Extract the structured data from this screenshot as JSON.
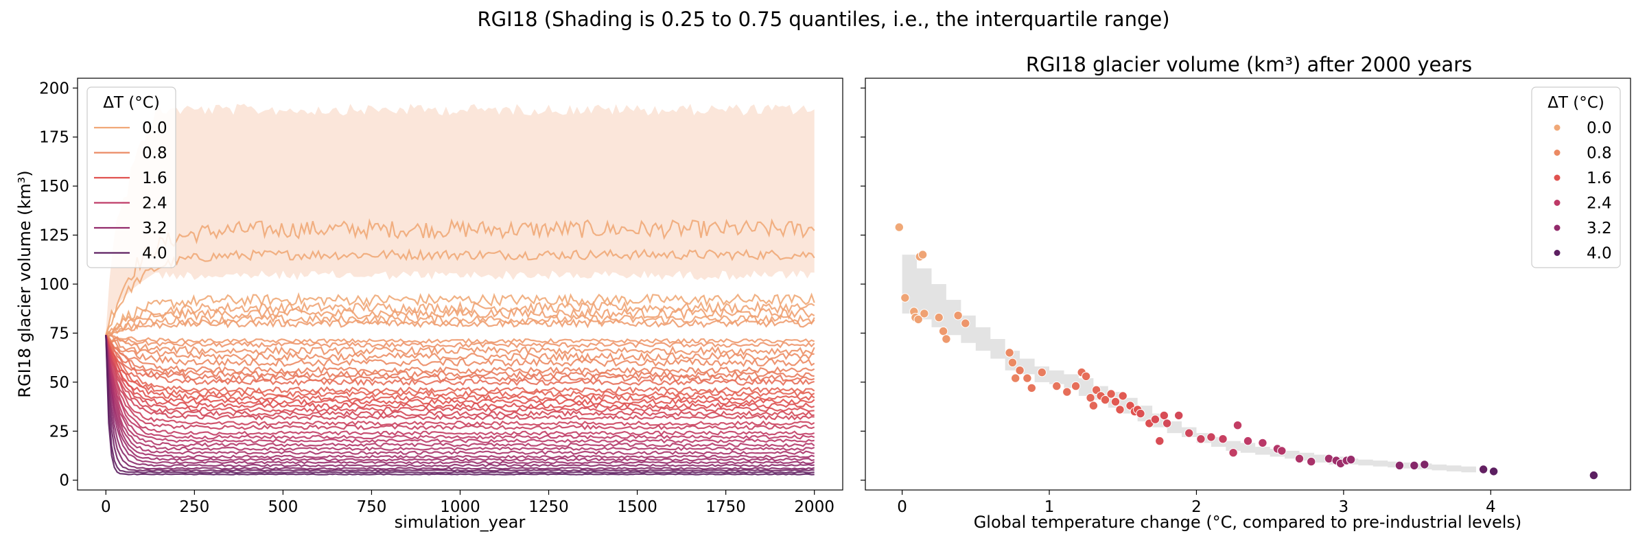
{
  "suptitle": "RGI18 (Shading is 0.25 to 0.75 quantiles, i.e., the interquartile range)",
  "legend_title": "ΔT (°C)",
  "legend_entries": [
    "0.0",
    "0.8",
    "1.6",
    "2.4",
    "3.2",
    "4.0"
  ],
  "colors": {
    "0.0": "#f0a877",
    "0.8": "#eb8a63",
    "1.6": "#e0524f",
    "2.4": "#be3a67",
    "3.2": "#922a6b",
    "4.0": "#5c1f61"
  },
  "chart_data": [
    {
      "type": "line",
      "title": "",
      "xlabel": "simulation_year",
      "ylabel": "RGI18 glacier volume (km³)",
      "xlim": [
        -80,
        2080
      ],
      "ylim": [
        -5,
        205
      ],
      "xticks": [
        "0",
        "250",
        "500",
        "750",
        "1000",
        "1250",
        "1500",
        "1750",
        "2000"
      ],
      "yticks": [
        "0",
        "25",
        "50",
        "75",
        "100",
        "125",
        "150",
        "175",
        "200"
      ],
      "initial_volume": 74,
      "shading": {
        "lower": 107,
        "upper": 192,
        "color": "#fbe6da"
      },
      "series": [
        {
          "dT": 0.0,
          "steady": 128,
          "noise": 4.5
        },
        {
          "dT": 0.0,
          "steady": 115,
          "noise": 2.5
        },
        {
          "dT": 0.0,
          "steady": 92,
          "noise": 2.8
        },
        {
          "dT": 0.1,
          "steady": 88,
          "noise": 2.5
        },
        {
          "dT": 0.2,
          "steady": 85,
          "noise": 2.5
        },
        {
          "dT": 0.2,
          "steady": 82,
          "noise": 2.2
        },
        {
          "dT": 0.3,
          "steady": 80,
          "noise": 1.8
        },
        {
          "dT": 0.4,
          "steady": 71,
          "noise": 1.0
        },
        {
          "dT": 0.5,
          "steady": 69,
          "noise": 1.2
        },
        {
          "dT": 0.6,
          "steady": 66,
          "noise": 1.8
        },
        {
          "dT": 0.7,
          "steady": 63,
          "noise": 1.8
        },
        {
          "dT": 0.8,
          "steady": 60,
          "noise": 1.8
        },
        {
          "dT": 0.9,
          "steady": 56,
          "noise": 1.5
        },
        {
          "dT": 1.0,
          "steady": 54,
          "noise": 1.5
        },
        {
          "dT": 1.1,
          "steady": 52,
          "noise": 1.5
        },
        {
          "dT": 1.2,
          "steady": 50,
          "noise": 1.4
        },
        {
          "dT": 1.3,
          "steady": 46,
          "noise": 1.4
        },
        {
          "dT": 1.4,
          "steady": 44,
          "noise": 1.3
        },
        {
          "dT": 1.5,
          "steady": 42,
          "noise": 1.3
        },
        {
          "dT": 1.6,
          "steady": 40,
          "noise": 1.2
        },
        {
          "dT": 1.7,
          "steady": 38,
          "noise": 1.2
        },
        {
          "dT": 1.8,
          "steady": 36,
          "noise": 1.1
        },
        {
          "dT": 1.9,
          "steady": 34,
          "noise": 1.1
        },
        {
          "dT": 2.0,
          "steady": 32,
          "noise": 1.0
        },
        {
          "dT": 2.1,
          "steady": 29,
          "noise": 1.0
        },
        {
          "dT": 2.2,
          "steady": 27,
          "noise": 1.0
        },
        {
          "dT": 2.3,
          "steady": 24,
          "noise": 0.9
        },
        {
          "dT": 2.4,
          "steady": 22,
          "noise": 0.9
        },
        {
          "dT": 2.5,
          "steady": 20,
          "noise": 0.8
        },
        {
          "dT": 2.6,
          "steady": 18,
          "noise": 0.8
        },
        {
          "dT": 2.7,
          "steady": 16,
          "noise": 0.7
        },
        {
          "dT": 2.8,
          "steady": 14,
          "noise": 0.7
        },
        {
          "dT": 2.9,
          "steady": 12,
          "noise": 0.6
        },
        {
          "dT": 3.0,
          "steady": 10.5,
          "noise": 0.6
        },
        {
          "dT": 3.1,
          "steady": 9,
          "noise": 0.5
        },
        {
          "dT": 3.3,
          "steady": 7.5,
          "noise": 0.5
        },
        {
          "dT": 3.5,
          "steady": 6,
          "noise": 0.4
        },
        {
          "dT": 3.7,
          "steady": 5,
          "noise": 0.3
        },
        {
          "dT": 3.9,
          "steady": 4,
          "noise": 0.3
        },
        {
          "dT": 4.0,
          "steady": 3,
          "noise": 0.2
        }
      ]
    },
    {
      "type": "scatter",
      "title": "RGI18 glacier volume (km³) after 2000 years",
      "xlabel": "Global temperature change (°C, compared to pre-industrial levels)",
      "ylabel": "",
      "xlim": [
        -0.25,
        4.95
      ],
      "ylim": [
        -5,
        205
      ],
      "xticks": [
        "0",
        "1",
        "2",
        "3",
        "4"
      ],
      "band": [
        [
          0.05,
          85,
          115
        ],
        [
          0.15,
          82,
          108
        ],
        [
          0.25,
          78,
          100
        ],
        [
          0.35,
          74,
          92
        ],
        [
          0.45,
          70,
          84
        ],
        [
          0.55,
          66,
          78
        ],
        [
          0.65,
          62,
          72
        ],
        [
          0.75,
          56,
          66
        ],
        [
          0.85,
          54,
          62
        ],
        [
          0.95,
          50,
          58
        ],
        [
          1.05,
          49,
          56
        ],
        [
          1.15,
          47,
          54
        ],
        [
          1.25,
          43,
          52
        ],
        [
          1.35,
          41,
          48
        ],
        [
          1.45,
          37,
          45
        ],
        [
          1.55,
          34,
          42
        ],
        [
          1.65,
          30,
          38
        ],
        [
          1.75,
          27,
          34
        ],
        [
          1.85,
          24,
          30
        ],
        [
          1.95,
          22,
          27
        ],
        [
          2.05,
          19,
          24
        ],
        [
          2.15,
          17,
          22
        ],
        [
          2.25,
          15,
          20
        ],
        [
          2.35,
          14,
          19
        ],
        [
          2.45,
          13,
          17
        ],
        [
          2.55,
          12,
          16
        ],
        [
          2.65,
          11,
          15
        ],
        [
          2.75,
          10,
          14
        ],
        [
          2.85,
          9,
          13
        ],
        [
          2.95,
          8,
          12
        ],
        [
          3.05,
          8,
          11
        ],
        [
          3.15,
          7.5,
          10.5
        ],
        [
          3.25,
          7,
          10
        ],
        [
          3.35,
          6.5,
          9.5
        ],
        [
          3.45,
          6,
          9
        ],
        [
          3.55,
          5.5,
          8.5
        ],
        [
          3.65,
          5,
          8
        ],
        [
          3.75,
          4.5,
          7.5
        ],
        [
          3.85,
          4,
          7
        ]
      ],
      "points": [
        [
          -0.02,
          129,
          0.0
        ],
        [
          0.02,
          93,
          0.1
        ],
        [
          0.08,
          86,
          0.1
        ],
        [
          0.09,
          83,
          0.1
        ],
        [
          0.11,
          82,
          0.2
        ],
        [
          0.12,
          114,
          0.1
        ],
        [
          0.14,
          115,
          0.1
        ],
        [
          0.15,
          85,
          0.2
        ],
        [
          0.25,
          83,
          0.3
        ],
        [
          0.28,
          76,
          0.4
        ],
        [
          0.3,
          72,
          0.4
        ],
        [
          0.38,
          84,
          0.4
        ],
        [
          0.43,
          80,
          0.5
        ],
        [
          0.73,
          65,
          0.8
        ],
        [
          0.75,
          60,
          0.8
        ],
        [
          0.77,
          52,
          0.9
        ],
        [
          0.8,
          56,
          1.0
        ],
        [
          0.85,
          52,
          1.0
        ],
        [
          0.88,
          47,
          1.1
        ],
        [
          0.95,
          55,
          1.0
        ],
        [
          1.05,
          48,
          1.1
        ],
        [
          1.12,
          45,
          1.2
        ],
        [
          1.18,
          48,
          1.2
        ],
        [
          1.22,
          55,
          1.2
        ],
        [
          1.25,
          53,
          1.2
        ],
        [
          1.28,
          42,
          1.3
        ],
        [
          1.3,
          38,
          1.3
        ],
        [
          1.32,
          46,
          1.3
        ],
        [
          1.35,
          43,
          1.4
        ],
        [
          1.38,
          41,
          1.4
        ],
        [
          1.42,
          44,
          1.4
        ],
        [
          1.45,
          40,
          1.5
        ],
        [
          1.48,
          36,
          1.5
        ],
        [
          1.5,
          43,
          1.5
        ],
        [
          1.55,
          38,
          1.6
        ],
        [
          1.58,
          35,
          1.6
        ],
        [
          1.6,
          36,
          1.6
        ],
        [
          1.62,
          34,
          1.7
        ],
        [
          1.68,
          29,
          1.7
        ],
        [
          1.72,
          31,
          1.8
        ],
        [
          1.75,
          20,
          1.8
        ],
        [
          1.78,
          33,
          1.8
        ],
        [
          1.8,
          29,
          1.9
        ],
        [
          1.88,
          33,
          1.9
        ],
        [
          1.95,
          24,
          2.0
        ],
        [
          2.03,
          21,
          2.1
        ],
        [
          2.1,
          22,
          2.1
        ],
        [
          2.18,
          21,
          2.2
        ],
        [
          2.25,
          14,
          2.3
        ],
        [
          2.28,
          28,
          2.3
        ],
        [
          2.35,
          20,
          2.4
        ],
        [
          2.45,
          19,
          2.5
        ],
        [
          2.55,
          16,
          2.6
        ],
        [
          2.58,
          15,
          2.6
        ],
        [
          2.7,
          11,
          2.7
        ],
        [
          2.78,
          9.5,
          2.8
        ],
        [
          2.9,
          11,
          2.9
        ],
        [
          2.95,
          10,
          3.0
        ],
        [
          2.98,
          8.5,
          3.0
        ],
        [
          3.02,
          10,
          3.0
        ],
        [
          3.05,
          10.5,
          3.1
        ],
        [
          3.38,
          7.5,
          3.3
        ],
        [
          3.48,
          7.5,
          3.4
        ],
        [
          3.55,
          8,
          3.5
        ],
        [
          3.95,
          5.5,
          3.9
        ],
        [
          4.02,
          4.5,
          4.0
        ],
        [
          4.7,
          2.5,
          4.0
        ]
      ]
    }
  ]
}
